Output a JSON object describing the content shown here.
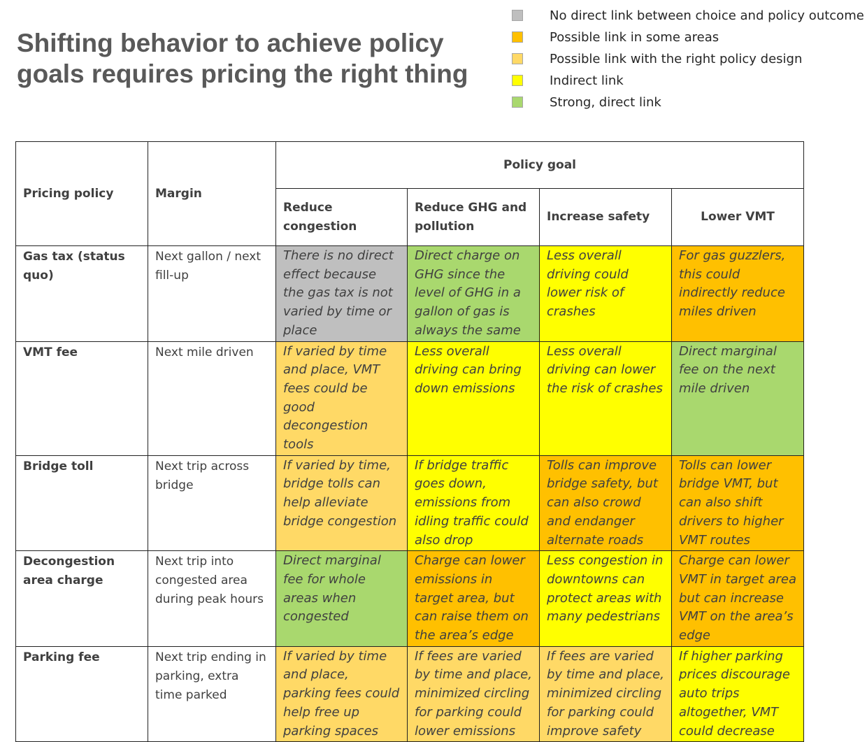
{
  "title": {
    "line1": "Shifting behavior to achieve policy",
    "line2": "goals requires pricing the right thing"
  },
  "colors": {
    "gray": "#bfbfbf",
    "orange": "#ffc000",
    "light_orange": "#ffd966",
    "yellow": "#ffff00",
    "green": "#a9d86e"
  },
  "legend": [
    {
      "color": "gray",
      "label": "No direct link between choice and policy outcome"
    },
    {
      "color": "orange",
      "label": "Possible link in some areas"
    },
    {
      "color": "light_orange",
      "label": "Possible link with the right policy design"
    },
    {
      "color": "yellow",
      "label": "Indirect link"
    },
    {
      "color": "green",
      "label": "Strong, direct link"
    }
  ],
  "table": {
    "header": {
      "pricing_policy": "Pricing policy",
      "margin": "Margin",
      "policy_goal": "Policy goal",
      "goals": [
        "Reduce congestion",
        "Reduce GHG  and pollution",
        "Increase safety",
        "Lower VMT"
      ]
    },
    "rows": [
      {
        "policy": "Gas tax (status quo)",
        "margin": "Next gallon / next fill-up",
        "cells": [
          {
            "color": "gray",
            "text": "There is no direct effect because the gas tax is not varied by time or place"
          },
          {
            "color": "green",
            "text": "Direct charge on GHG since the level of GHG in a gallon of gas is always the same"
          },
          {
            "color": "yellow",
            "text": "Less overall driving could lower risk of crashes"
          },
          {
            "color": "orange",
            "text": "For gas guzzlers, this could indirectly reduce miles driven"
          }
        ]
      },
      {
        "policy": "VMT fee",
        "margin": "Next mile driven",
        "cells": [
          {
            "color": "light_orange",
            "text": "If varied by time and place, VMT fees could be good decongestion tools"
          },
          {
            "color": "yellow",
            "text": "Less overall driving can bring down emissions"
          },
          {
            "color": "yellow",
            "text": "Less overall driving can lower the risk of crashes"
          },
          {
            "color": "green",
            "text": "Direct marginal fee on the next mile driven"
          }
        ]
      },
      {
        "policy": "Bridge toll",
        "margin": "Next trip across bridge",
        "cells": [
          {
            "color": "light_orange",
            "text": "If varied by time, bridge tolls can help alleviate bridge congestion"
          },
          {
            "color": "yellow",
            "text": "If bridge traffic goes down, emissions from idling traffic could also drop"
          },
          {
            "color": "orange",
            "text": "Tolls can improve bridge safety,  but can also crowd and endanger alternate roads"
          },
          {
            "color": "orange",
            "text": "Tolls can lower bridge VMT, but can also shift drivers to higher VMT routes"
          }
        ]
      },
      {
        "policy": "Decongestion area charge",
        "margin": "Next trip into congested area during peak hours",
        "cells": [
          {
            "color": "green",
            "text": "Direct marginal fee for whole areas when congested"
          },
          {
            "color": "orange",
            "text": "Charge can lower emissions in target area, but can raise them on the area’s edge"
          },
          {
            "color": "yellow",
            "text": "Less congestion in downtowns can protect areas with many pedestrians"
          },
          {
            "color": "orange",
            "text": "Charge can lower VMT in target area but can increase VMT on the area’s edge"
          }
        ]
      },
      {
        "policy": "Parking fee",
        "margin": "Next trip ending in parking, extra time parked",
        "cells": [
          {
            "color": "light_orange",
            "text": "If varied by time and place, parking fees could help free up parking spaces"
          },
          {
            "color": "light_orange",
            "text": " If fees are varied by time and place, minimized circling for parking could lower emissions"
          },
          {
            "color": "light_orange",
            "text": "If fees are varied by time and place, minimized circling for parking could improve safety"
          },
          {
            "color": "yellow",
            "text": "If higher parking prices discourage auto trips altogether, VMT could decrease"
          }
        ]
      }
    ]
  }
}
